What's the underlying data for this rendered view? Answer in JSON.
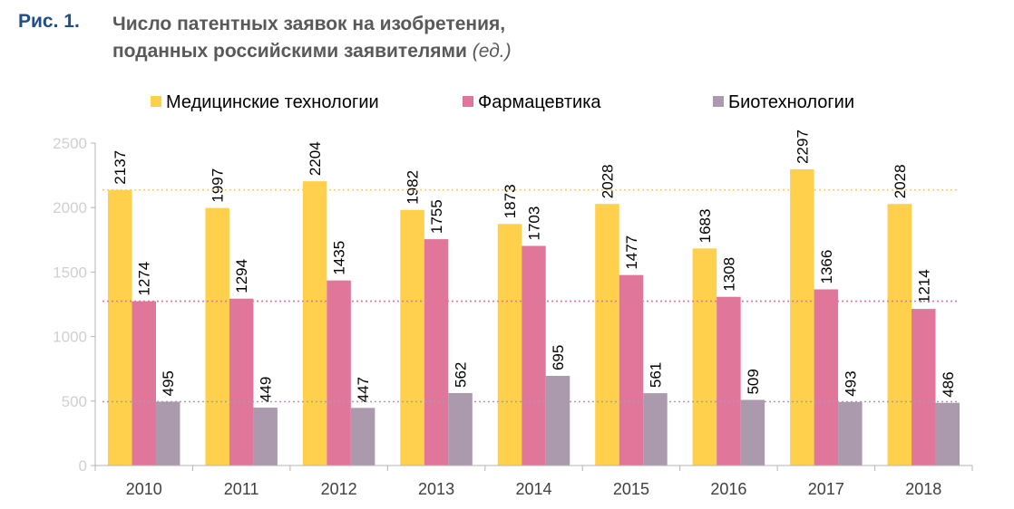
{
  "header": {
    "figure_label": "Рис. 1.",
    "title_line1": "Число патентных заявок на изобретения,",
    "title_line2": "поданных российскими заявителями",
    "unit": "(ед.)"
  },
  "chart_data": {
    "type": "bar",
    "categories": [
      "2010",
      "2011",
      "2012",
      "2013",
      "2014",
      "2015",
      "2016",
      "2017",
      "2018"
    ],
    "series": [
      {
        "name": "Медицинские технологии",
        "color": "#ffd04b",
        "values": [
          2137,
          1997,
          2204,
          1982,
          1873,
          2028,
          1683,
          2297,
          2028
        ],
        "reference_line": 2137
      },
      {
        "name": "Фармацевтика",
        "color": "#e0779b",
        "values": [
          1274,
          1294,
          1435,
          1755,
          1703,
          1477,
          1308,
          1366,
          1214
        ],
        "reference_line": 1274
      },
      {
        "name": "Биотехнологии",
        "color": "#ab9aae",
        "values": [
          495,
          449,
          447,
          562,
          695,
          561,
          509,
          493,
          486
        ],
        "reference_line": 495
      }
    ],
    "y_ticks": [
      "0",
      "500",
      "1000",
      "1500",
      "2000",
      "2500"
    ],
    "ylim": [
      0,
      2500
    ],
    "grid": false,
    "legend_position": "top",
    "data_labels": true,
    "data_label_orientation": "vertical"
  }
}
